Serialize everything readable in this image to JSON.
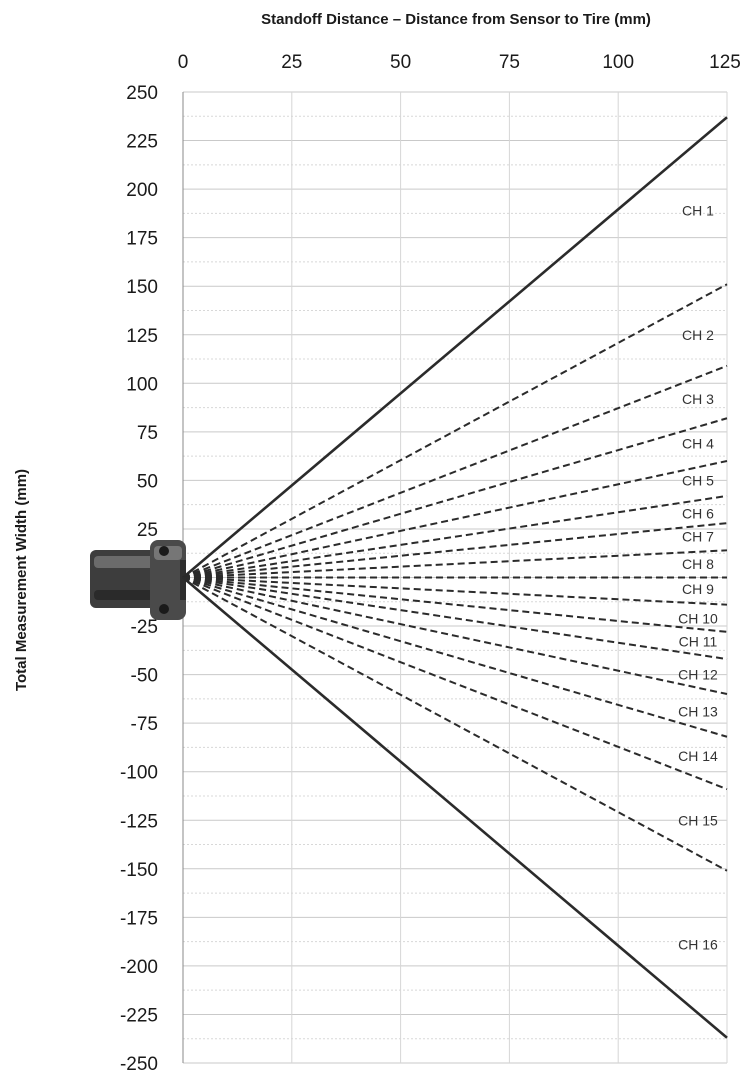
{
  "chart_data": {
    "type": "line",
    "title": "Standoff Distance – Distance from Sensor to Tire (mm)",
    "xlabel": "Standoff Distance – Distance from Sensor to Tire (mm)",
    "ylabel": "Total Measurement Width (mm)",
    "xlim": [
      0,
      125
    ],
    "ylim": [
      -250,
      250
    ],
    "x_ticks": [
      "0",
      "25",
      "50",
      "75",
      "100",
      "125"
    ],
    "y_ticks": [
      "250",
      "225",
      "200",
      "175",
      "150",
      "125",
      "100",
      "75",
      "50",
      "25",
      "-25",
      "-50",
      "-75",
      "-100",
      "-125",
      "-150",
      "-175",
      "-200",
      "-225",
      "-250"
    ],
    "x_axis_position": "top",
    "grid": true,
    "series": [
      {
        "style": "solid",
        "x": [
          0,
          125
        ],
        "y": [
          0,
          237
        ]
      },
      {
        "style": "dashed",
        "x": [
          0,
          125
        ],
        "y": [
          0,
          151
        ]
      },
      {
        "style": "dashed",
        "x": [
          0,
          125
        ],
        "y": [
          0,
          109
        ]
      },
      {
        "style": "dashed",
        "x": [
          0,
          125
        ],
        "y": [
          0,
          82
        ]
      },
      {
        "style": "dashed",
        "x": [
          0,
          125
        ],
        "y": [
          0,
          60
        ]
      },
      {
        "style": "dashed",
        "x": [
          0,
          125
        ],
        "y": [
          0,
          42
        ]
      },
      {
        "style": "dashed",
        "x": [
          0,
          125
        ],
        "y": [
          0,
          28
        ]
      },
      {
        "style": "dashed",
        "x": [
          0,
          125
        ],
        "y": [
          0,
          14
        ]
      },
      {
        "style": "dashed",
        "x": [
          0,
          125
        ],
        "y": [
          0,
          0
        ]
      },
      {
        "style": "dashed",
        "x": [
          0,
          125
        ],
        "y": [
          0,
          -14
        ]
      },
      {
        "style": "dashed",
        "x": [
          0,
          125
        ],
        "y": [
          0,
          -28
        ]
      },
      {
        "style": "dashed",
        "x": [
          0,
          125
        ],
        "y": [
          0,
          -42
        ]
      },
      {
        "style": "dashed",
        "x": [
          0,
          125
        ],
        "y": [
          0,
          -60
        ]
      },
      {
        "style": "dashed",
        "x": [
          0,
          125
        ],
        "y": [
          0,
          -82
        ]
      },
      {
        "style": "dashed",
        "x": [
          0,
          125
        ],
        "y": [
          0,
          -109
        ]
      },
      {
        "style": "dashed",
        "x": [
          0,
          125
        ],
        "y": [
          0,
          -151
        ]
      },
      {
        "style": "solid",
        "x": [
          0,
          125
        ],
        "y": [
          0,
          -237
        ]
      }
    ],
    "region_labels": [
      {
        "text": "CH 1",
        "x": 120,
        "y": 189
      },
      {
        "text": "CH 2",
        "x": 120,
        "y": 125
      },
      {
        "text": "CH 3",
        "x": 120,
        "y": 92
      },
      {
        "text": "CH 4",
        "x": 120,
        "y": 69
      },
      {
        "text": "CH 5",
        "x": 120,
        "y": 50
      },
      {
        "text": "CH 6",
        "x": 120,
        "y": 33
      },
      {
        "text": "CH 7",
        "x": 120,
        "y": 21
      },
      {
        "text": "CH 8",
        "x": 120,
        "y": 7
      },
      {
        "text": "CH 9",
        "x": 120,
        "y": -6
      },
      {
        "text": "CH 10",
        "x": 120,
        "y": -21
      },
      {
        "text": "CH 11",
        "x": 120,
        "y": -33
      },
      {
        "text": "CH 12",
        "x": 120,
        "y": -50
      },
      {
        "text": "CH 13",
        "x": 120,
        "y": -69
      },
      {
        "text": "CH 14",
        "x": 120,
        "y": -92
      },
      {
        "text": "CH 15",
        "x": 120,
        "y": -125
      },
      {
        "text": "CH 16",
        "x": 120,
        "y": -189
      }
    ]
  },
  "colors": {
    "line": "#2b2b2b",
    "grid": "#cccccc",
    "sensor_body": "#4a4a4a"
  },
  "icons": {
    "sensor": "sensor-head-icon"
  }
}
